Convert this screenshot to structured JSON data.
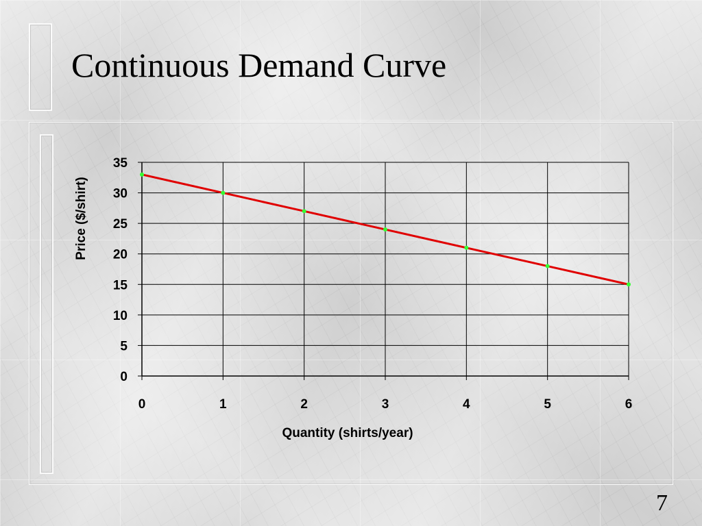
{
  "slide": {
    "title": "Continuous Demand Curve",
    "page_number": "7"
  },
  "colors": {
    "line": "#e00000",
    "markers": "#33ff33",
    "grid": "#000000"
  },
  "chart_data": {
    "type": "line",
    "xlabel": "Quantity (shirts/year)",
    "ylabel": "Price ($/shirt)",
    "xlim": [
      0,
      6
    ],
    "ylim": [
      0,
      35
    ],
    "xticks": [
      0,
      1,
      2,
      3,
      4,
      5,
      6
    ],
    "yticks": [
      0,
      5,
      10,
      15,
      20,
      25,
      30,
      35
    ],
    "grid": true,
    "series": [
      {
        "x": [
          0,
          1,
          2,
          3,
          4,
          5,
          6
        ],
        "y": [
          33,
          30,
          27,
          24,
          21,
          18,
          15
        ]
      }
    ]
  }
}
